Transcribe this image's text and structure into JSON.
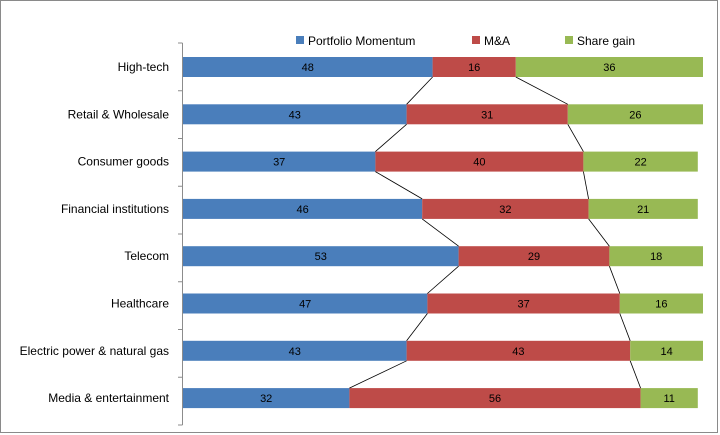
{
  "chart_data": {
    "type": "bar",
    "orientation": "horizontal",
    "stacked": true,
    "percent": true,
    "connector_lines": true,
    "legend_position": "top",
    "grid": false,
    "xlim": [
      0,
      100
    ],
    "categories": [
      "High-tech",
      "Retail & Wholesale",
      "Consumer goods",
      "Financial institutions",
      "Telecom",
      "Healthcare",
      "Electric power & natural gas",
      "Media & entertainment"
    ],
    "series": [
      {
        "name": "Portfolio Momentum",
        "color": "#4a7ebb",
        "values": [
          48,
          43,
          37,
          46,
          53,
          47,
          43,
          32
        ]
      },
      {
        "name": "M&A",
        "color": "#be4b48",
        "values": [
          16,
          31,
          40,
          32,
          29,
          37,
          43,
          56
        ]
      },
      {
        "name": "Share gain",
        "color": "#98b954",
        "values": [
          36,
          26,
          22,
          21,
          18,
          16,
          14,
          11
        ]
      }
    ]
  }
}
